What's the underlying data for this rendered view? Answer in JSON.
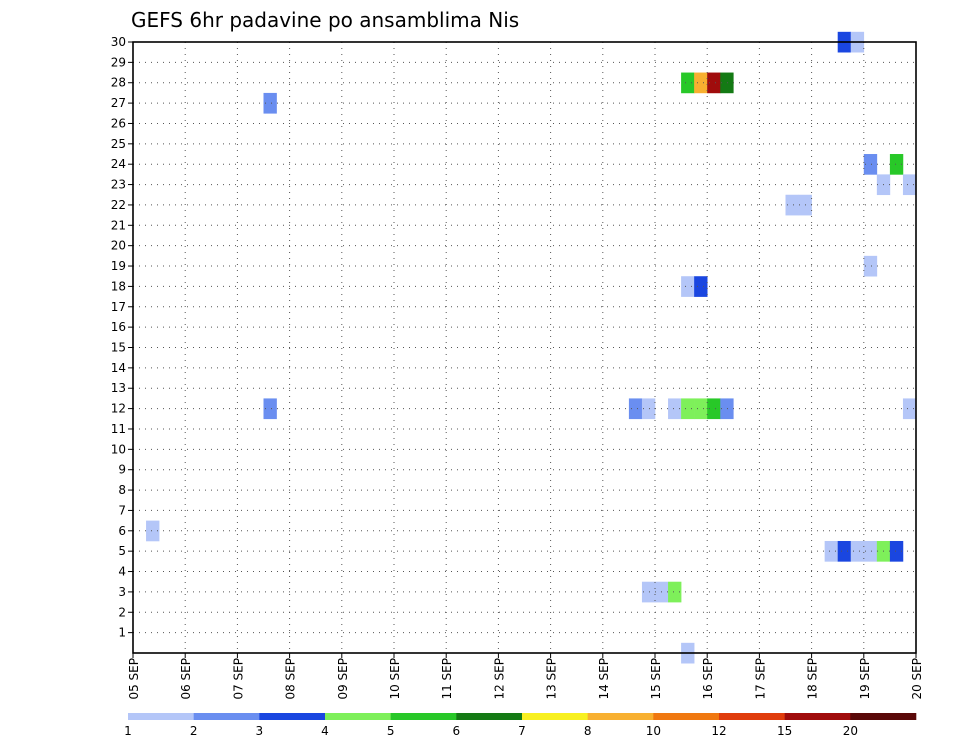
{
  "chart_data": {
    "type": "heatmap",
    "title": "GEFS 6hr padavine po ansamblima Nis",
    "xlabel": "",
    "ylabel": "",
    "x_tick_labels": [
      "05 SEP",
      "06 SEP",
      "07 SEP",
      "08 SEP",
      "09 SEP",
      "10 SEP",
      "11 SEP",
      "12 SEP",
      "13 SEP",
      "14 SEP",
      "15 SEP",
      "16 SEP",
      "17 SEP",
      "18 SEP",
      "19 SEP",
      "20 SEP"
    ],
    "y_tick_labels": [
      "1",
      "2",
      "3",
      "4",
      "5",
      "6",
      "7",
      "8",
      "9",
      "10",
      "11",
      "12",
      "13",
      "14",
      "15",
      "16",
      "17",
      "18",
      "19",
      "20",
      "21",
      "22",
      "23",
      "24",
      "25",
      "26",
      "27",
      "28",
      "29",
      "30"
    ],
    "xlim": [
      0,
      15
    ],
    "ylim": [
      0,
      30
    ],
    "steps_per_day": 4,
    "grid": true,
    "cells": [
      {
        "day": 0.25,
        "member": 6,
        "value": 1.5
      },
      {
        "day": 2.5,
        "member": 27,
        "value": 2.5
      },
      {
        "day": 2.5,
        "member": 12,
        "value": 2.5
      },
      {
        "day": 9.5,
        "member": 12,
        "value": 2.5
      },
      {
        "day": 9.75,
        "member": 12,
        "value": 1.5
      },
      {
        "day": 10.25,
        "member": 12,
        "value": 1.5
      },
      {
        "day": 10.5,
        "member": 12,
        "value": 4.5
      },
      {
        "day": 10.75,
        "member": 12,
        "value": 4.5
      },
      {
        "day": 11.0,
        "member": 12,
        "value": 5.5
      },
      {
        "day": 11.25,
        "member": 12,
        "value": 2.5
      },
      {
        "day": 9.75,
        "member": 3,
        "value": 1.5
      },
      {
        "day": 10.0,
        "member": 3,
        "value": 1.5
      },
      {
        "day": 10.25,
        "member": 3,
        "value": 4.5
      },
      {
        "day": 10.5,
        "member": 0,
        "value": 1.5
      },
      {
        "day": 10.5,
        "member": 28,
        "value": 5.5
      },
      {
        "day": 10.75,
        "member": 28,
        "value": 9
      },
      {
        "day": 11.0,
        "member": 28,
        "value": 17
      },
      {
        "day": 11.25,
        "member": 28,
        "value": 6.5
      },
      {
        "day": 10.5,
        "member": 18,
        "value": 1.5
      },
      {
        "day": 10.75,
        "member": 18,
        "value": 3.5
      },
      {
        "day": 12.5,
        "member": 22,
        "value": 1.5
      },
      {
        "day": 12.75,
        "member": 22,
        "value": 1.5
      },
      {
        "day": 13.25,
        "member": 5,
        "value": 1.5
      },
      {
        "day": 13.5,
        "member": 5,
        "value": 3.5
      },
      {
        "day": 13.75,
        "member": 5,
        "value": 1.5
      },
      {
        "day": 14.0,
        "member": 5,
        "value": 1.5
      },
      {
        "day": 14.25,
        "member": 5,
        "value": 4.5
      },
      {
        "day": 14.5,
        "member": 5,
        "value": 3.5
      },
      {
        "day": 13.5,
        "member": 30,
        "value": 3.5
      },
      {
        "day": 13.75,
        "member": 30,
        "value": 1.5
      },
      {
        "day": 14.0,
        "member": 19,
        "value": 1.5
      },
      {
        "day": 14.0,
        "member": 24,
        "value": 2.5
      },
      {
        "day": 14.25,
        "member": 23,
        "value": 1.5
      },
      {
        "day": 14.5,
        "member": 24,
        "value": 5.5
      },
      {
        "day": 14.75,
        "member": 23,
        "value": 1.5
      },
      {
        "day": 14.75,
        "member": 12,
        "value": 1.5
      }
    ],
    "legend": {
      "placement": "bottom",
      "labels": [
        "1",
        "2",
        "3",
        "4",
        "5",
        "6",
        "7",
        "8",
        "10",
        "12",
        "15",
        "20"
      ],
      "colors": [
        "#b4c6f8",
        "#6a8ef0",
        "#1a46e0",
        "#7ef05a",
        "#28c828",
        "#147a14",
        "#f8f020",
        "#f8b030",
        "#f07810",
        "#e03c0c",
        "#a00c0c",
        "#5a0808"
      ]
    }
  }
}
